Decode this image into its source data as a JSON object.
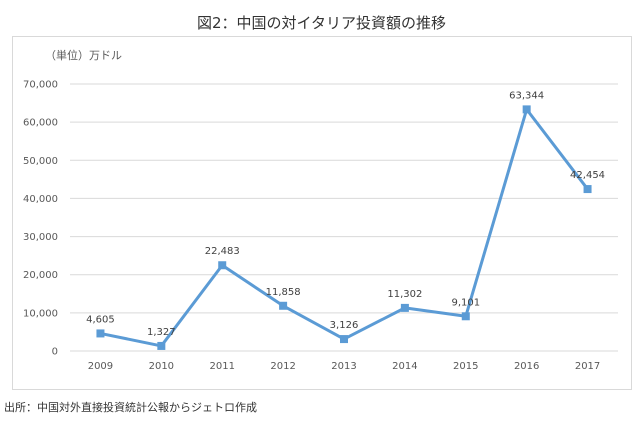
{
  "chart_data": {
    "type": "line",
    "title": "図2：中国の対イタリア投資額の推移",
    "unit_label": "（単位）万ドル",
    "xlabel": "",
    "ylabel": "",
    "categories": [
      "2009",
      "2010",
      "2011",
      "2012",
      "2013",
      "2014",
      "2015",
      "2016",
      "2017"
    ],
    "series": [
      {
        "values": [
          4605,
          1327,
          22483,
          11858,
          3126,
          11302,
          9101,
          63344,
          42454
        ],
        "labels": [
          "4,605",
          "1,327",
          "22,483",
          "11,858",
          "3,126",
          "11,302",
          "9,101",
          "63,344",
          "42,454"
        ],
        "color": "#5b9bd5"
      }
    ],
    "ylim": [
      0,
      70000
    ],
    "yticks": [
      0,
      10000,
      20000,
      30000,
      40000,
      50000,
      60000,
      70000
    ],
    "ytick_labels": [
      "0",
      "10,000",
      "20,000",
      "30,000",
      "40,000",
      "50,000",
      "60,000",
      "70,000"
    ],
    "grid": true,
    "legend": "none"
  },
  "colors": {
    "grid": "#d9d9d9",
    "series": "#5b9bd5"
  },
  "source": "出所：中国対外直接投資統計公報からジェトロ作成"
}
